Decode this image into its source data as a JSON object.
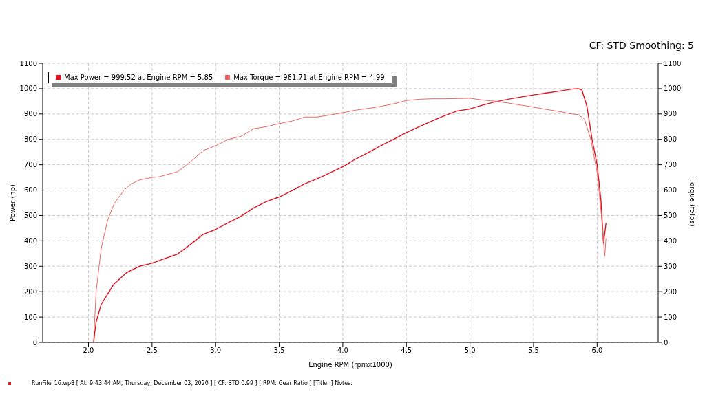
{
  "chart_data": {
    "type": "line",
    "subtitle": "CF: STD Smoothing: 5",
    "xlabel": "Engine RPM (rpmx1000)",
    "ylabel": "Power (hp)",
    "y2label": "Torque (ft·lbs)",
    "xlim": [
      1.64,
      6.48
    ],
    "xticks": [
      {
        "value": 2,
        "label": "2.0"
      },
      {
        "value": 2.5,
        "label": "2.5"
      },
      {
        "value": 3,
        "label": "3.0"
      },
      {
        "value": 3.5,
        "label": "3.5"
      },
      {
        "value": 4,
        "label": "4.0"
      },
      {
        "value": 4.5,
        "label": "4.5"
      },
      {
        "value": 5,
        "label": "5.0"
      },
      {
        "value": 5.5,
        "label": "5.5"
      },
      {
        "value": 6,
        "label": "6.0"
      }
    ],
    "ylim": [
      0,
      1100
    ],
    "yticks": [
      0,
      100,
      200,
      300,
      400,
      500,
      600,
      700,
      800,
      900,
      1000,
      1100
    ],
    "y2lim": [
      0,
      1100
    ],
    "y2ticks": [
      0,
      100,
      200,
      300,
      400,
      500,
      600,
      700,
      800,
      900,
      1000,
      1100
    ],
    "grid": true,
    "legend": "top left",
    "annotations": [
      "RunFile_16.wp8 [ At: 9:43:44 AM, Thursday, December 03, 2020 ] [ CF: STD 0.99 ] [ RPM: Gear Ratio ] [Title: ]  Notes:"
    ],
    "series": [
      {
        "name": "Max Power = 999.52 at Engine RPM = 5.85",
        "color": "#e0141e",
        "x": [
          2.04,
          2.06,
          2.1,
          2.2,
          2.3,
          2.4,
          2.5,
          2.6,
          2.7,
          2.8,
          2.9,
          3.0,
          3.1,
          3.2,
          3.3,
          3.4,
          3.5,
          3.6,
          3.7,
          3.8,
          3.9,
          4.0,
          4.1,
          4.2,
          4.3,
          4.4,
          4.5,
          4.6,
          4.7,
          4.8,
          4.9,
          5.0,
          5.1,
          5.2,
          5.3,
          5.4,
          5.5,
          5.6,
          5.7,
          5.8,
          5.85,
          5.88,
          5.92,
          5.96,
          6.0,
          6.03,
          6.05,
          6.07
        ],
        "values": [
          0,
          80,
          150,
          230,
          275,
          300,
          312,
          330,
          348,
          385,
          425,
          445,
          472,
          497,
          530,
          555,
          573,
          598,
          625,
          645,
          668,
          692,
          722,
          748,
          775,
          800,
          827,
          850,
          872,
          893,
          912,
          920,
          935,
          948,
          958,
          967,
          975,
          983,
          990,
          998,
          1000,
          995,
          930,
          800,
          700,
          560,
          390,
          470
        ]
      },
      {
        "name": "Max Torque = 961.71 at Engine RPM = 4.99",
        "color": "#f06464",
        "x": [
          2.04,
          2.06,
          2.1,
          2.15,
          2.2,
          2.28,
          2.33,
          2.4,
          2.5,
          2.55,
          2.7,
          2.8,
          2.9,
          3.0,
          3.1,
          3.2,
          3.3,
          3.4,
          3.5,
          3.6,
          3.7,
          3.8,
          3.9,
          4.0,
          4.1,
          4.2,
          4.3,
          4.4,
          4.5,
          4.6,
          4.7,
          4.8,
          4.9,
          5.0,
          5.1,
          5.2,
          5.3,
          5.4,
          5.5,
          5.6,
          5.7,
          5.8,
          5.85,
          5.9,
          5.95,
          6.0,
          6.03,
          6.06,
          6.07
        ],
        "values": [
          0,
          200,
          370,
          480,
          545,
          600,
          622,
          640,
          650,
          652,
          672,
          710,
          755,
          775,
          800,
          812,
          842,
          850,
          862,
          872,
          888,
          888,
          896,
          905,
          915,
          922,
          930,
          940,
          953,
          958,
          960,
          960,
          961,
          962,
          955,
          950,
          943,
          935,
          927,
          918,
          910,
          900,
          898,
          880,
          800,
          670,
          520,
          340,
          410
        ]
      }
    ]
  }
}
